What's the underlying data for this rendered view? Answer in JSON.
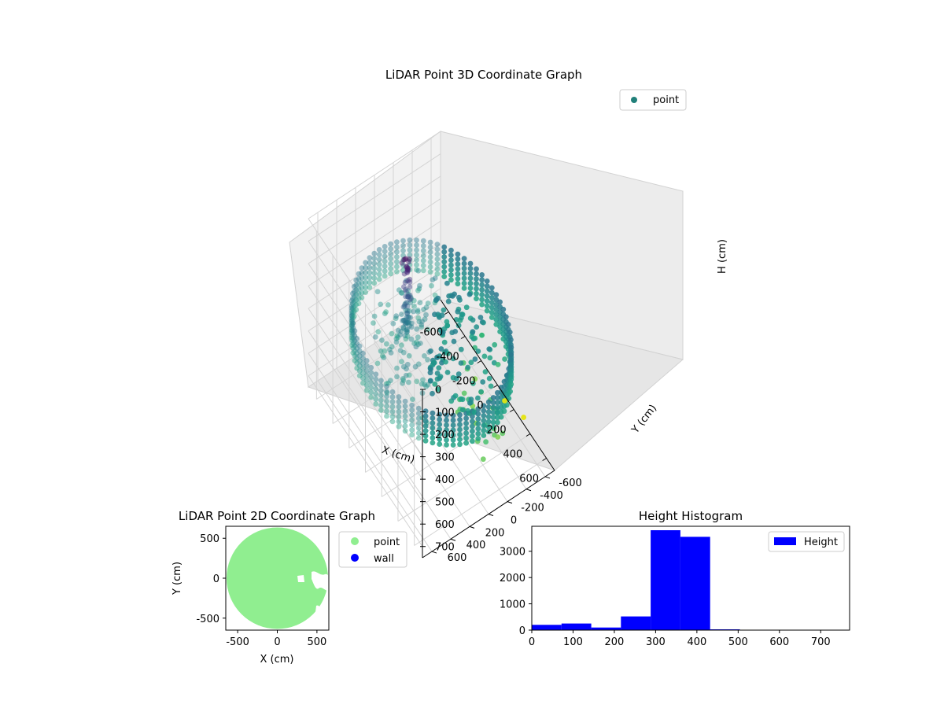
{
  "chart_data": [
    {
      "type": "scatter",
      "title": "LiDAR Point 3D Coordinate Graph",
      "xlabel": "X (cm)",
      "ylabel": "Y (cm)",
      "zlabel": "H (cm)",
      "xlim": [
        -700,
        700
      ],
      "ylim": [
        -700,
        700
      ],
      "zlim": [
        0,
        750
      ],
      "x_ticks": [
        "-600",
        "-400",
        "-200",
        "0",
        "200",
        "400",
        "600"
      ],
      "y_ticks": [
        "-600",
        "-400",
        "-200",
        "0",
        "200",
        "400",
        "600"
      ],
      "z_ticks": [
        "0",
        "100",
        "200",
        "300",
        "400",
        "500",
        "600",
        "700"
      ],
      "z_inverted": true,
      "colormap": "viridis",
      "legend": {
        "placement": "top-right",
        "entries": [
          {
            "name": "point",
            "color": "#21807a"
          }
        ]
      },
      "grid": true,
      "wall_ring": {
        "radius": 640,
        "h_range": [
          300,
          450
        ]
      },
      "inner_cluster": {
        "radius_range": [
          100,
          520
        ],
        "h_range": [
          320,
          440
        ]
      },
      "column": {
        "x": -130,
        "y": 150,
        "h_range": [
          20,
          350
        ]
      },
      "outliers": [
        {
          "x": 180,
          "y": -620,
          "h": 700,
          "color": "#d7e219"
        },
        {
          "x": 320,
          "y": -700,
          "h": 720,
          "color": "#e5e419"
        },
        {
          "x": -100,
          "y": -620,
          "h": 560,
          "color": "#35b779"
        }
      ]
    },
    {
      "type": "scatter",
      "title": "LiDAR Point 2D Coordinate Graph",
      "xlabel": "X (cm)",
      "ylabel": "Y (cm)",
      "xlim": [
        -650,
        650
      ],
      "ylim": [
        -650,
        650
      ],
      "x_ticks": [
        "-500",
        "0",
        "500"
      ],
      "y_ticks": [
        "-500",
        "0",
        "500"
      ],
      "disk_radius": 640,
      "legend": {
        "placement": "outside-right",
        "entries": [
          {
            "name": "point",
            "color": "#90ee90"
          },
          {
            "name": "wall",
            "color": "#0000ff"
          }
        ]
      }
    },
    {
      "type": "bar",
      "title": "Height Histogram",
      "xlabel": "",
      "ylabel": "",
      "xlim": [
        0,
        770
      ],
      "ylim": [
        0,
        3950
      ],
      "x_ticks": [
        "0",
        "100",
        "200",
        "300",
        "400",
        "500",
        "600",
        "700"
      ],
      "y_ticks": [
        "0",
        "1000",
        "2000",
        "3000"
      ],
      "bin_edges": [
        0,
        72,
        144,
        216,
        288,
        360,
        432,
        504,
        576,
        648,
        720
      ],
      "counts": [
        200,
        250,
        100,
        520,
        3800,
        3550,
        30,
        6,
        4,
        3
      ],
      "color": "#0000ff",
      "legend": {
        "placement": "top-right",
        "entries": [
          {
            "name": "Height",
            "color": "#0000ff"
          }
        ]
      }
    }
  ]
}
